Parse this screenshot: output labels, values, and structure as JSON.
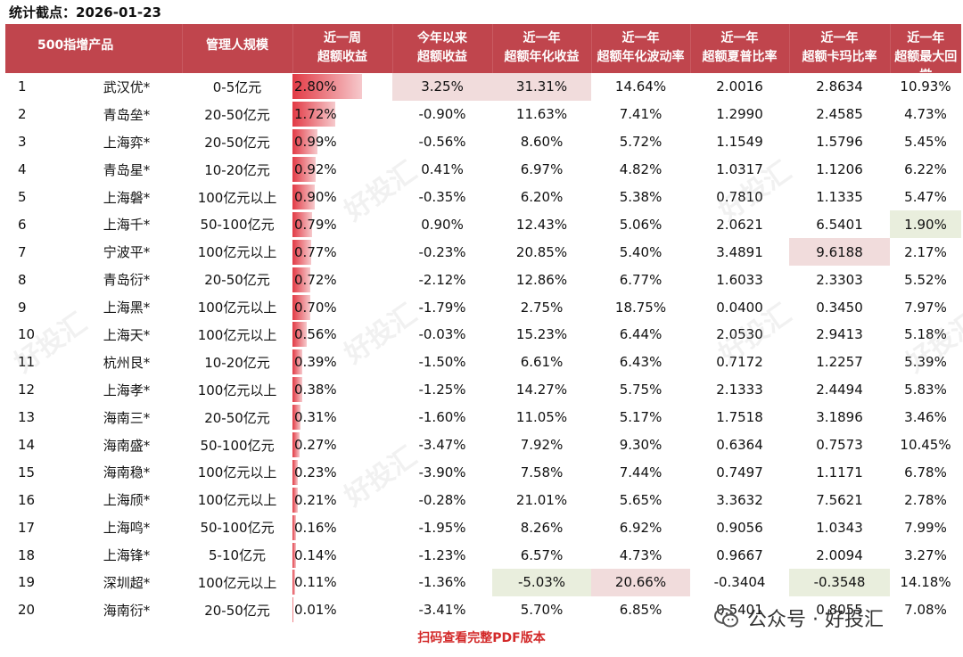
{
  "stat_line": "统计截点：2026-01-23",
  "headers": [
    {
      "l1": "500指增产品",
      "l2": ""
    },
    {
      "l1": "管理人规模",
      "l2": ""
    },
    {
      "l1": "近一周",
      "l2": "超额收益"
    },
    {
      "l1": "今年以来",
      "l2": "超额收益"
    },
    {
      "l1": "近一年",
      "l2": "超额年化收益"
    },
    {
      "l1": "近一年",
      "l2": "超额年化波动率"
    },
    {
      "l1": "近一年",
      "l2": "超额夏普比率"
    },
    {
      "l1": "近一年",
      "l2": "超额卡玛比率"
    },
    {
      "l1": "近一年",
      "l2": "超额最大回撤"
    }
  ],
  "bar_max": 2.8,
  "rows": [
    {
      "rank": "1",
      "name": "武汉优*",
      "scale": "0-5亿元",
      "week": "2.80%",
      "wk_val": 2.8,
      "ytd": "3.25%",
      "ann_ret": "31.31%",
      "vol": "14.64%",
      "sharpe": "2.0016",
      "calmar": "2.8634",
      "mdd": "10.93%"
    },
    {
      "rank": "2",
      "name": "青岛垒*",
      "scale": "20-50亿元",
      "week": "1.72%",
      "wk_val": 1.72,
      "ytd": "-0.90%",
      "ann_ret": "11.63%",
      "vol": "7.41%",
      "sharpe": "1.2990",
      "calmar": "2.4585",
      "mdd": "4.73%"
    },
    {
      "rank": "3",
      "name": "上海弈*",
      "scale": "20-50亿元",
      "week": "0.99%",
      "wk_val": 0.99,
      "ytd": "-0.56%",
      "ann_ret": "8.60%",
      "vol": "5.72%",
      "sharpe": "1.1549",
      "calmar": "1.5796",
      "mdd": "5.45%"
    },
    {
      "rank": "4",
      "name": "青岛星*",
      "scale": "10-20亿元",
      "week": "0.92%",
      "wk_val": 0.92,
      "ytd": "0.41%",
      "ann_ret": "6.97%",
      "vol": "4.82%",
      "sharpe": "1.0317",
      "calmar": "1.1206",
      "mdd": "6.22%"
    },
    {
      "rank": "5",
      "name": "上海磐*",
      "scale": "100亿元以上",
      "week": "0.90%",
      "wk_val": 0.9,
      "ytd": "-0.35%",
      "ann_ret": "6.20%",
      "vol": "5.38%",
      "sharpe": "0.7810",
      "calmar": "1.1335",
      "mdd": "5.47%"
    },
    {
      "rank": "6",
      "name": "上海千*",
      "scale": "50-100亿元",
      "week": "0.79%",
      "wk_val": 0.79,
      "ytd": "0.90%",
      "ann_ret": "12.43%",
      "vol": "5.06%",
      "sharpe": "2.0621",
      "calmar": "6.5401",
      "mdd": "1.90%"
    },
    {
      "rank": "7",
      "name": "宁波平*",
      "scale": "100亿元以上",
      "week": "0.77%",
      "wk_val": 0.77,
      "ytd": "-0.23%",
      "ann_ret": "20.85%",
      "vol": "5.40%",
      "sharpe": "3.4891",
      "calmar": "9.6188",
      "mdd": "2.17%"
    },
    {
      "rank": "8",
      "name": "青岛衍*",
      "scale": "20-50亿元",
      "week": "0.72%",
      "wk_val": 0.72,
      "ytd": "-2.12%",
      "ann_ret": "12.86%",
      "vol": "6.77%",
      "sharpe": "1.6033",
      "calmar": "2.3303",
      "mdd": "5.52%"
    },
    {
      "rank": "9",
      "name": "上海黑*",
      "scale": "100亿元以上",
      "week": "0.70%",
      "wk_val": 0.7,
      "ytd": "-1.79%",
      "ann_ret": "2.75%",
      "vol": "18.75%",
      "sharpe": "0.0400",
      "calmar": "0.3450",
      "mdd": "7.97%"
    },
    {
      "rank": "10",
      "name": "上海天*",
      "scale": "100亿元以上",
      "week": "0.56%",
      "wk_val": 0.56,
      "ytd": "-0.03%",
      "ann_ret": "15.23%",
      "vol": "6.44%",
      "sharpe": "2.0530",
      "calmar": "2.9413",
      "mdd": "5.18%"
    },
    {
      "rank": "11",
      "name": "杭州艮*",
      "scale": "10-20亿元",
      "week": "0.39%",
      "wk_val": 0.39,
      "ytd": "-1.50%",
      "ann_ret": "6.61%",
      "vol": "6.43%",
      "sharpe": "0.7172",
      "calmar": "1.2257",
      "mdd": "5.39%"
    },
    {
      "rank": "12",
      "name": "上海孝*",
      "scale": "100亿元以上",
      "week": "0.38%",
      "wk_val": 0.38,
      "ytd": "-1.25%",
      "ann_ret": "14.27%",
      "vol": "5.75%",
      "sharpe": "2.1333",
      "calmar": "2.4494",
      "mdd": "5.83%"
    },
    {
      "rank": "13",
      "name": "海南三*",
      "scale": "20-50亿元",
      "week": "0.31%",
      "wk_val": 0.31,
      "ytd": "-1.60%",
      "ann_ret": "11.05%",
      "vol": "5.17%",
      "sharpe": "1.7518",
      "calmar": "3.1896",
      "mdd": "3.46%"
    },
    {
      "rank": "14",
      "name": "海南盛*",
      "scale": "50-100亿元",
      "week": "0.27%",
      "wk_val": 0.27,
      "ytd": "-3.47%",
      "ann_ret": "7.92%",
      "vol": "9.30%",
      "sharpe": "0.6364",
      "calmar": "0.7573",
      "mdd": "10.45%"
    },
    {
      "rank": "15",
      "name": "海南稳*",
      "scale": "100亿元以上",
      "week": "0.23%",
      "wk_val": 0.23,
      "ytd": "-3.90%",
      "ann_ret": "7.58%",
      "vol": "7.44%",
      "sharpe": "0.7497",
      "calmar": "1.1171",
      "mdd": "6.78%"
    },
    {
      "rank": "16",
      "name": "上海颀*",
      "scale": "100亿元以上",
      "week": "0.21%",
      "wk_val": 0.21,
      "ytd": "-0.28%",
      "ann_ret": "21.01%",
      "vol": "5.65%",
      "sharpe": "3.3632",
      "calmar": "7.5621",
      "mdd": "2.78%"
    },
    {
      "rank": "17",
      "name": "上海鸣*",
      "scale": "50-100亿元",
      "week": "0.16%",
      "wk_val": 0.16,
      "ytd": "-1.95%",
      "ann_ret": "8.26%",
      "vol": "6.92%",
      "sharpe": "0.9056",
      "calmar": "1.0343",
      "mdd": "7.99%"
    },
    {
      "rank": "18",
      "name": "上海锋*",
      "scale": "5-10亿元",
      "week": "0.14%",
      "wk_val": 0.14,
      "ytd": "-1.23%",
      "ann_ret": "6.57%",
      "vol": "4.73%",
      "sharpe": "0.9667",
      "calmar": "2.0094",
      "mdd": "3.27%"
    },
    {
      "rank": "19",
      "name": "深圳超*",
      "scale": "100亿元以上",
      "week": "0.11%",
      "wk_val": 0.11,
      "ytd": "-1.36%",
      "ann_ret": "-5.03%",
      "vol": "20.66%",
      "sharpe": "-0.3404",
      "calmar": "-0.3548",
      "mdd": "14.18%"
    },
    {
      "rank": "20",
      "name": "海南衍*",
      "scale": "20-50亿元",
      "week": "0.01%",
      "wk_val": 0.01,
      "ytd": "-3.41%",
      "ann_ret": "5.70%",
      "vol": "6.85%",
      "sharpe": "0.5401",
      "calmar": "0.8055",
      "mdd": "7.08%"
    }
  ],
  "highlights": {
    "red": [
      [
        0,
        "ytd"
      ],
      [
        0,
        "ann_ret"
      ],
      [
        6,
        "calmar"
      ],
      [
        18,
        "vol"
      ]
    ],
    "green": [
      [
        5,
        "mdd"
      ],
      [
        18,
        "ann_ret"
      ],
      [
        18,
        "calmar"
      ]
    ]
  },
  "colors": {
    "header_bg": "#c0454d",
    "highlight_red": "#f1dcdc",
    "highlight_green": "#e9eedd",
    "bar": "#e23a45",
    "footer": "#d32a2a"
  },
  "footer_text": "扫码查看完整PDF版本",
  "badge": {
    "icon": "wechat-icon",
    "text": "公众号 · 好投汇"
  },
  "watermark": "好投汇"
}
